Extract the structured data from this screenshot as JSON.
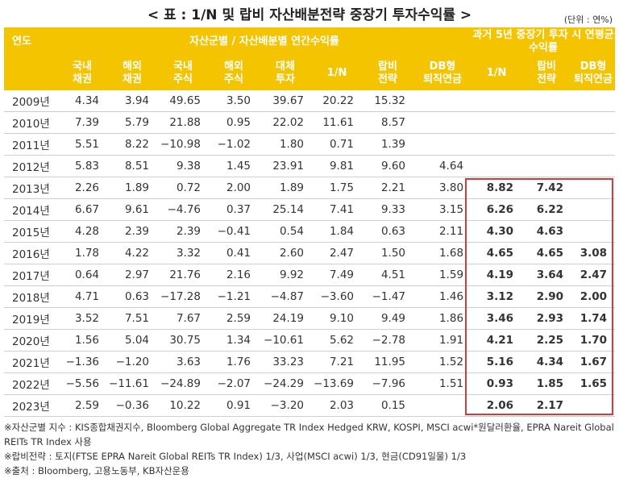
{
  "title": "< 표 : 1/N 및 랍비 자산배분전략 중장기 투자수익률 >",
  "unit": "(단위 : 연%)",
  "headers": {
    "year": "연도",
    "group_annual": "자산군별 / 자산배분별 연간수익률",
    "group_hist": "과거 5년 중장기 투자 시 연평균수익률",
    "columns": [
      "국내\n채권",
      "해외\n채권",
      "국내\n주식",
      "해외\n주식",
      "대체\n투자",
      "1/N",
      "랍비\n전략",
      "DB형\n퇴직연금",
      "1/N",
      "랍비\n전략",
      "DB형\n퇴직연금"
    ]
  },
  "chart_data": {
    "type": "table",
    "title": "< 표 : 1/N 및 랍비 자산배분전략 중장기 투자수익률 >",
    "columns": [
      "연도",
      "국내채권",
      "해외채권",
      "국내주식",
      "해외주식",
      "대체투자",
      "1/N",
      "랍비전략",
      "DB형퇴직연금",
      "5년 1/N",
      "5년 랍비전략",
      "5년 DB형퇴직연금"
    ],
    "rows": [
      [
        "2009년",
        "4.34",
        "3.94",
        "49.65",
        "3.50",
        "39.67",
        "20.22",
        "15.32",
        "",
        "",
        "",
        ""
      ],
      [
        "2010년",
        "7.39",
        "5.79",
        "21.88",
        "0.95",
        "22.02",
        "11.61",
        "8.57",
        "",
        "",
        "",
        ""
      ],
      [
        "2011년",
        "5.51",
        "8.22",
        "−10.98",
        "−1.02",
        "1.80",
        "0.71",
        "1.39",
        "",
        "",
        "",
        ""
      ],
      [
        "2012년",
        "5.83",
        "8.51",
        "9.38",
        "1.45",
        "23.91",
        "9.81",
        "9.60",
        "4.64",
        "",
        "",
        ""
      ],
      [
        "2013년",
        "2.26",
        "1.89",
        "0.72",
        "2.00",
        "1.89",
        "1.75",
        "2.21",
        "3.80",
        "8.82",
        "7.42",
        ""
      ],
      [
        "2014년",
        "6.67",
        "9.61",
        "−4.76",
        "0.37",
        "25.14",
        "7.41",
        "9.33",
        "3.15",
        "6.26",
        "6.22",
        ""
      ],
      [
        "2015년",
        "4.28",
        "2.39",
        "2.39",
        "−0.41",
        "0.54",
        "1.84",
        "0.63",
        "2.11",
        "4.30",
        "4.63",
        ""
      ],
      [
        "2016년",
        "1.78",
        "4.22",
        "3.32",
        "0.41",
        "2.60",
        "2.47",
        "1.50",
        "1.68",
        "4.65",
        "4.65",
        "3.08"
      ],
      [
        "2017년",
        "0.64",
        "2.97",
        "21.76",
        "2.16",
        "9.92",
        "7.49",
        "4.51",
        "1.59",
        "4.19",
        "3.64",
        "2.47"
      ],
      [
        "2018년",
        "4.71",
        "0.63",
        "−17.28",
        "−1.21",
        "−4.87",
        "−3.60",
        "−1.47",
        "1.46",
        "3.12",
        "2.90",
        "2.00"
      ],
      [
        "2019년",
        "3.52",
        "7.51",
        "7.67",
        "2.59",
        "24.19",
        "9.10",
        "9.49",
        "1.86",
        "3.46",
        "2.93",
        "1.74"
      ],
      [
        "2020년",
        "1.56",
        "5.04",
        "30.75",
        "1.34",
        "−10.61",
        "5.62",
        "−2.78",
        "1.91",
        "4.21",
        "2.25",
        "1.70"
      ],
      [
        "2021년",
        "−1.36",
        "−1.20",
        "3.63",
        "1.76",
        "33.23",
        "7.21",
        "11.95",
        "1.52",
        "5.16",
        "4.34",
        "1.67"
      ],
      [
        "2022년",
        "−5.56",
        "−11.61",
        "−24.89",
        "−2.07",
        "−24.29",
        "−13.69",
        "−7.96",
        "1.51",
        "0.93",
        "1.85",
        "1.65"
      ],
      [
        "2023년",
        "2.59",
        "−0.36",
        "10.22",
        "0.91",
        "−3.20",
        "2.03",
        "0.15",
        "",
        "2.06",
        "2.17",
        ""
      ]
    ]
  },
  "notes": [
    "※자산군별 지수 : KIS종합채권지수, Bloomberg Global Aggregate TR Index Hedged KRW, KOSPI, MSCI acwi*원달러환율, EPRA Nareit Global REITs TR Index 사용",
    "※랍비전략 : 토지(FTSE EPRA Nareit Global REITs TR Index) 1/3, 사업(MSCI acwi) 1/3, 현금(CD91일물) 1/3",
    "※출처 : Bloomberg, 고용노동부, KB자산운용"
  ],
  "colors": {
    "header_bg": "#f5c400",
    "header_text": "#ffffff",
    "highlight_border": "#d23b3b",
    "row_divider": "#cfcfcf"
  }
}
